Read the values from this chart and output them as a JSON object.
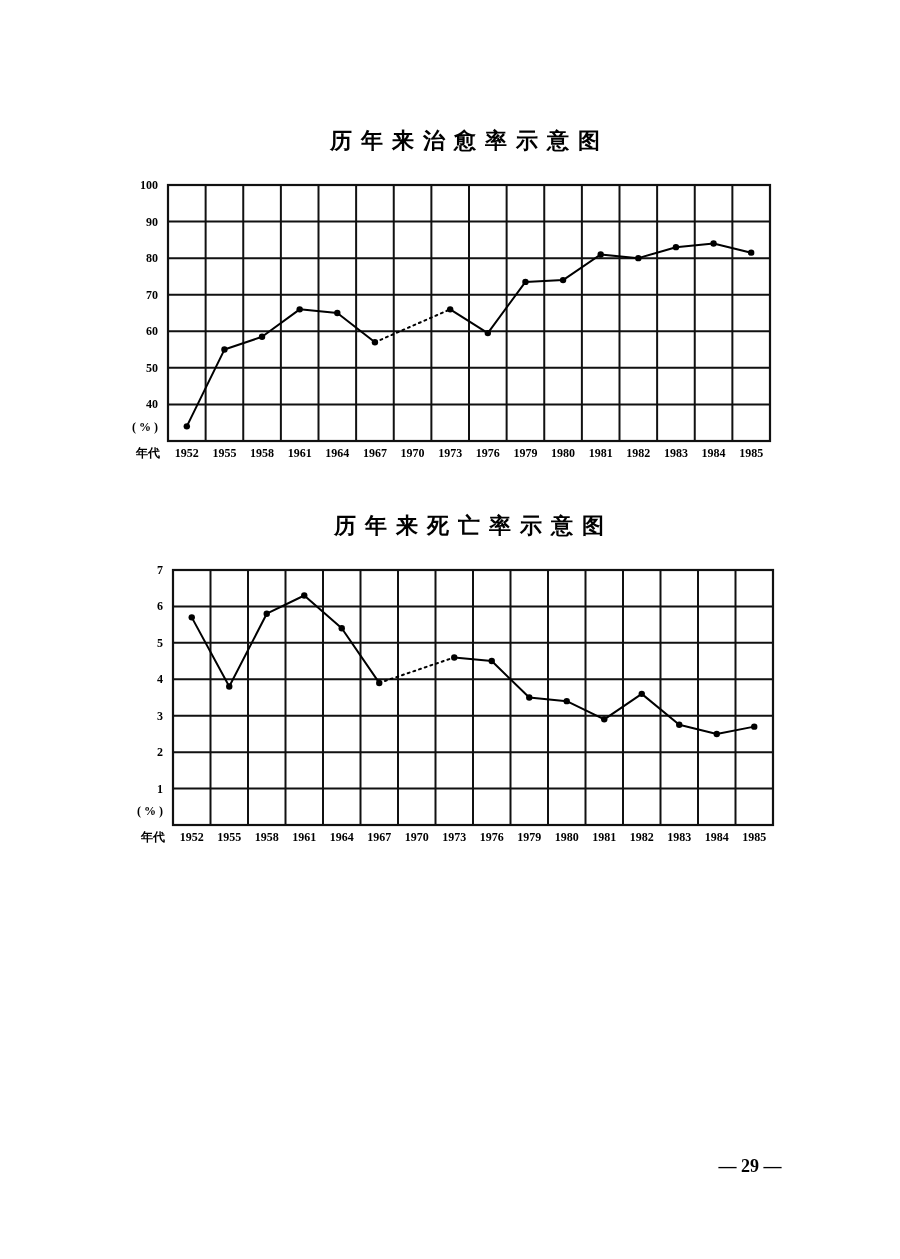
{
  "chart_data": [
    {
      "type": "line",
      "title": "历年来治愈率示意图",
      "xlabel": "年代",
      "ylabel": "( % )",
      "categories": [
        "1952",
        "1955",
        "1958",
        "1961",
        "1964",
        "1967",
        "1970",
        "1973",
        "1976",
        "1979",
        "1980",
        "1981",
        "1982",
        "1983",
        "1984",
        "1985"
      ],
      "ylim": [
        30,
        100
      ],
      "yticks": [
        40,
        50,
        60,
        70,
        80,
        90,
        100
      ],
      "grid": true,
      "marker": "circle",
      "line_style": "solid",
      "series": [
        {
          "color": "#000000",
          "values": [
            34,
            55,
            58.5,
            66,
            65,
            57,
            null,
            66,
            59.5,
            73.5,
            74,
            81,
            80,
            83,
            84,
            81.5
          ]
        }
      ]
    },
    {
      "type": "line",
      "title": "历年来死亡率示意图",
      "xlabel": "年代",
      "ylabel": "( % )",
      "categories": [
        "1952",
        "1955",
        "1958",
        "1961",
        "1964",
        "1967",
        "1970",
        "1973",
        "1976",
        "1979",
        "1980",
        "1981",
        "1982",
        "1983",
        "1984",
        "1985"
      ],
      "ylim": [
        0,
        7
      ],
      "yticks": [
        1,
        2,
        3,
        4,
        5,
        6,
        7
      ],
      "grid": true,
      "marker": "circle",
      "line_style": "solid",
      "annotations": [
        "— 29 —"
      ],
      "series": [
        {
          "color": "#000000",
          "values": [
            5.7,
            3.8,
            5.8,
            6.3,
            5.4,
            3.9,
            null,
            4.6,
            4.5,
            3.5,
            3.4,
            2.9,
            3.6,
            2.75,
            2.5,
            2.7
          ]
        }
      ]
    }
  ]
}
